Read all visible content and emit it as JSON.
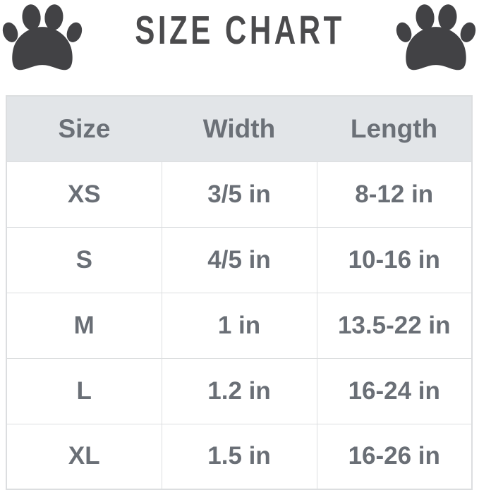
{
  "icons": {
    "left": "paw-icon",
    "right": "paw-icon"
  },
  "colors": {
    "paw": "#424245",
    "title": "#4b4b4d",
    "header_bg": "#e2e5e8",
    "header_text": "#6b7077",
    "cell_text": "#6a6f76",
    "border": "#dcdee0",
    "background": "#ffffff"
  },
  "chart_data": {
    "type": "table",
    "title": "SIZE CHART",
    "columns": [
      "Size",
      "Width",
      "Length"
    ],
    "rows": [
      [
        "XS",
        "3/5 in",
        "8-12 in"
      ],
      [
        "S",
        "4/5 in",
        "10-16 in"
      ],
      [
        "M",
        "1 in",
        "13.5-22 in"
      ],
      [
        "L",
        "1.2 in",
        "16-24 in"
      ],
      [
        "XL",
        "1.5 in",
        "16-26 in"
      ]
    ]
  }
}
